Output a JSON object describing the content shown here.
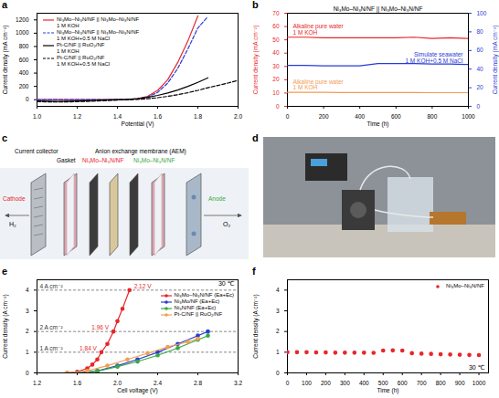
{
  "chart_data": [
    {
      "panel": "a",
      "type": "line",
      "xlabel": "Potential (V)",
      "ylabel": "Current density (mA cm⁻²)",
      "x": [
        1.0,
        1.1,
        1.2,
        1.3,
        1.4,
        1.45,
        1.5,
        1.55,
        1.6,
        1.65,
        1.7,
        1.75,
        1.8,
        1.85,
        1.9,
        1.95,
        2.0
      ],
      "xlim": [
        1.0,
        2.0
      ],
      "xticks": [
        {
          "value": 1.0,
          "label": "1.0"
        },
        1.2,
        1.4,
        1.6,
        1.8,
        {
          "value": 2.0,
          "label": "2.0"
        }
      ],
      "ylim": [
        -100,
        1300
      ],
      "yticks": [
        0,
        200,
        400,
        600,
        800,
        1000,
        1200
      ],
      "legend": "upper left",
      "series": [
        {
          "name": "Ni₃Mo–Ni₃N/NF || Ni₃Mo–Ni₃N/NF",
          "electrolyte": "1 M KOH",
          "color": "#e8262a",
          "line_style": "solid",
          "values": [
            0,
            0,
            0,
            0,
            2,
            5,
            15,
            50,
            140,
            300,
            560,
            880,
            1260,
            null,
            null,
            null,
            null
          ]
        },
        {
          "name": "Ni₃Mo–Ni₃N/NF || Ni₃Mo–Ni₃N/NF",
          "electrolyte": "1 M KOH+0.5 M NaCl",
          "color": "#2a3cd6",
          "line_style": "dashed",
          "values": [
            0,
            0,
            0,
            0,
            1,
            4,
            12,
            40,
            110,
            250,
            470,
            760,
            1080,
            1250,
            null,
            null,
            null
          ]
        },
        {
          "name": "Pt-C/NF || RuO₂/NF",
          "electrolyte": "1 M KOH",
          "color": "#000000",
          "line_style": "solid",
          "values": [
            -20,
            -25,
            -20,
            -10,
            0,
            5,
            15,
            35,
            65,
            100,
            145,
            200,
            260,
            330,
            null,
            null,
            null
          ]
        },
        {
          "name": "Pt-C/NF || RuO₂/NF",
          "electrolyte": "1 M KOH+0.5 M NaCl",
          "color": "#000000",
          "line_style": "dashed",
          "values": [
            -30,
            -35,
            -30,
            -20,
            -5,
            0,
            5,
            15,
            30,
            50,
            75,
            105,
            140,
            180,
            215,
            250,
            290
          ]
        }
      ]
    },
    {
      "panel": "b",
      "type": "line",
      "title": "Ni₃Mo–Ni₃N/NF || Ni₃Mo–Ni₃N/NF",
      "xlabel": "Time (h)",
      "ylabel": "Current density (mA cm⁻²)",
      "y2label": "Current density (mA cm⁻²)",
      "x": [
        0,
        100,
        200,
        300,
        400,
        500,
        600,
        700,
        800,
        900,
        1000
      ],
      "xlim": [
        0,
        1000
      ],
      "xticks": [
        0,
        200,
        400,
        600,
        800,
        1000
      ],
      "ylim": [
        0,
        70
      ],
      "yticks": [
        0,
        10,
        20,
        30,
        40,
        50,
        60,
        70
      ],
      "y2lim": [
        0,
        100
      ],
      "y2ticks": [
        0,
        20,
        40,
        60,
        80,
        100
      ],
      "series": [
        {
          "name": "Alkaline pure water",
          "electrolyte": "1 M KOH",
          "color": "#e8262a",
          "line_style": "solid",
          "values": [
            52,
            52,
            51.5,
            51.5,
            51.5,
            51.5,
            51.5,
            52,
            51,
            51.5,
            51
          ]
        },
        {
          "name": "Simulate seawater",
          "electrolyte": "1 M KOH+0.5 M NaCl",
          "color": "#2a3cd6",
          "line_style": "solid",
          "axis": "y2",
          "values": [
            44,
            44,
            43.5,
            43.5,
            43.5,
            46,
            46,
            46,
            45.5,
            45.5,
            45
          ]
        },
        {
          "name": "Alkaline pure water",
          "electrolyte": "1 M KOH",
          "color": "#f29a55",
          "line_style": "solid",
          "values": [
            10.5,
            10.5,
            10.5,
            10.4,
            10.4,
            10.4,
            10.4,
            10.4,
            10.3,
            10.3,
            10.3
          ]
        }
      ]
    },
    {
      "panel": "e",
      "type": "line",
      "xlabel": "Cell voltage (V)",
      "ylabel": "Current density (A cm⁻²)",
      "xlim": [
        1.2,
        3.2
      ],
      "xticks": [
        1.2,
        1.6,
        {
          "value": 2.0,
          "label": "2.0"
        },
        2.4,
        2.8,
        3.2
      ],
      "ylim": [
        0,
        4.5
      ],
      "yticks": [
        0,
        1,
        2,
        3,
        4
      ],
      "legend": "upper right",
      "condition": "30 ℃",
      "reference_lines": [
        {
          "value": 1,
          "label": "1 A cm⁻²"
        },
        {
          "value": 2,
          "label": "2 A cm⁻²"
        },
        {
          "value": 4,
          "label": "4 A cm⁻²"
        }
      ],
      "annotations": [
        {
          "x": 2.12,
          "y": 4,
          "text": "2.12 V"
        },
        {
          "x": 1.96,
          "y": 2,
          "text": "1.96 V"
        },
        {
          "x": 1.84,
          "y": 1,
          "text": "1.84 V"
        }
      ],
      "series": [
        {
          "name": "Ni₃Mo–Ni₃N/NF (Ea+Ec)",
          "color": "#e8262a",
          "marker": "circle",
          "line_style": "solid",
          "x": [
            1.5,
            1.6,
            1.7,
            1.75,
            1.8,
            1.84,
            1.9,
            1.96,
            2.0,
            2.05,
            2.12
          ],
          "values": [
            0,
            0.05,
            0.22,
            0.4,
            0.65,
            1.0,
            1.4,
            2.0,
            2.5,
            3.1,
            4.0
          ]
        },
        {
          "name": "Ni₃Mo/NF (Ea+Ec)",
          "color": "#2a3cd6",
          "marker": "circle",
          "line_style": "solid",
          "x": [
            1.6,
            1.8,
            2.0,
            2.2,
            2.4,
            2.6,
            2.8,
            2.9
          ],
          "values": [
            0,
            0.1,
            0.35,
            0.65,
            1.0,
            1.4,
            1.8,
            2.0
          ]
        },
        {
          "name": "Ni₃N/NF (Ea+Ec)",
          "color": "#3aa845",
          "marker": "circle",
          "line_style": "solid",
          "x": [
            1.6,
            1.8,
            2.0,
            2.2,
            2.4,
            2.6,
            2.8,
            2.9
          ],
          "values": [
            0,
            0.08,
            0.3,
            0.55,
            0.85,
            1.2,
            1.6,
            1.8
          ]
        },
        {
          "name": "Pt-C/NF || RuO₂/NF",
          "color": "#f0a050",
          "marker": "circle",
          "line_style": "solid",
          "x": [
            1.5,
            1.7,
            1.9,
            2.1,
            2.3,
            2.5,
            2.7,
            2.8
          ],
          "values": [
            0,
            0.1,
            0.35,
            0.65,
            0.95,
            1.25,
            1.5,
            1.65
          ]
        }
      ]
    },
    {
      "panel": "f",
      "type": "scatter",
      "xlabel": "Time (h)",
      "ylabel": "Current density (A cm⁻²)",
      "x": [
        0,
        50,
        100,
        150,
        200,
        250,
        300,
        350,
        400,
        450,
        500,
        550,
        600,
        650,
        700,
        750,
        800,
        850,
        900,
        950,
        1000
      ],
      "xlim": [
        0,
        1050
      ],
      "xticks": [
        0,
        100,
        200,
        300,
        400,
        500,
        600,
        700,
        800,
        900,
        1000
      ],
      "ylim": [
        0,
        4.5
      ],
      "yticks": [
        0,
        1,
        2,
        3,
        4
      ],
      "legend": "upper right",
      "condition": "30 ℃",
      "series": [
        {
          "name": "Ni₃Mo–Ni₃N/NF",
          "color": "#e8262a",
          "marker": "circle",
          "values": [
            1.0,
            1.0,
            1.0,
            0.99,
            0.99,
            0.98,
            0.98,
            0.98,
            0.98,
            0.97,
            1.08,
            1.09,
            1.08,
            0.95,
            0.93,
            0.92,
            0.9,
            0.89,
            0.88,
            0.87,
            0.86
          ]
        }
      ]
    }
  ],
  "diagram": {
    "panel": "c",
    "labels": {
      "current_collector": "Current collector",
      "cathode": "Cathode",
      "h2": "H₂",
      "gasket": "Gasket",
      "aem": "Anion exchange membrane (AEM)",
      "cathode_electrode": "Ni₃Mo–Ni₃N/NF",
      "anode_electrode": "Ni₃Mo–Ni₃N/NF",
      "anode": "Anode",
      "o2": "O₂"
    }
  },
  "photo": {
    "panel": "d"
  }
}
